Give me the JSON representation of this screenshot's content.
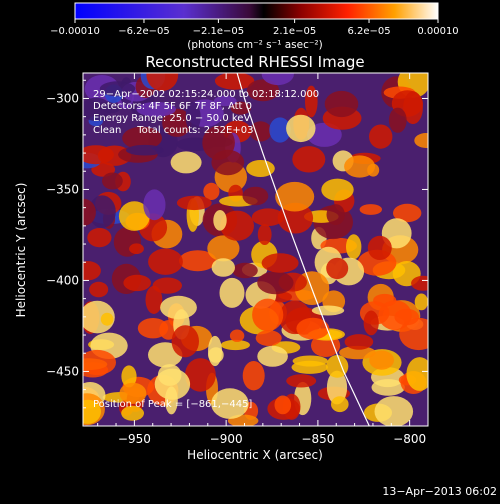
{
  "chart_data": {
    "type": "heatmap",
    "title": "Reconstructed RHESSI Image",
    "xlabel": "Heliocentric X (arcsec)",
    "ylabel": "Heliocentric Y (arcsec)",
    "xlim": [
      -978,
      -790
    ],
    "ylim": [
      -480,
      -286
    ],
    "x_ticks": [
      -950,
      -900,
      -850,
      -800
    ],
    "y_ticks": [
      -450,
      -400,
      -350,
      -300
    ],
    "x_tick_labels": [
      "−950",
      "−900",
      "−850",
      "−800"
    ],
    "y_tick_labels": [
      "−450",
      "−400",
      "−350",
      "−300"
    ],
    "colorbar": {
      "range": [
        -0.0001,
        0.0001
      ],
      "tick_values": [
        -0.0001,
        -6.2e-05,
        -2.1e-05,
        2.1e-05,
        6.2e-05,
        0.0001
      ],
      "tick_labels": [
        "−0.00010",
        "−6.2e−05",
        "−2.1e−05",
        "2.1e−05",
        "6.2e−05",
        "0.00010"
      ],
      "unit_label": "(photons cm⁻² s⁻¹ asec⁻²)"
    },
    "annotations": [
      "29−Apr−2002 02:15:24.000 to 02:18:12.000",
      "Detectors: 4F 5F 6F 7F 8F, Att 0",
      "Energy Range: 25.0 − 50.0 keV",
      "Clean     Total counts: 2.52E+03"
    ],
    "peak_label": "Position of Peak = [−861,−445]",
    "peak": [
      -861,
      -445
    ],
    "limb_line": [
      [
        -894,
        -286
      ],
      [
        -890,
        -300
      ],
      [
        -880,
        -330
      ],
      [
        -866,
        -370
      ],
      [
        -852,
        -408
      ],
      [
        -836,
        -450
      ],
      [
        -822,
        -480
      ]
    ]
  },
  "footer": {
    "timestamp": "13−Apr−2013 06:02"
  }
}
